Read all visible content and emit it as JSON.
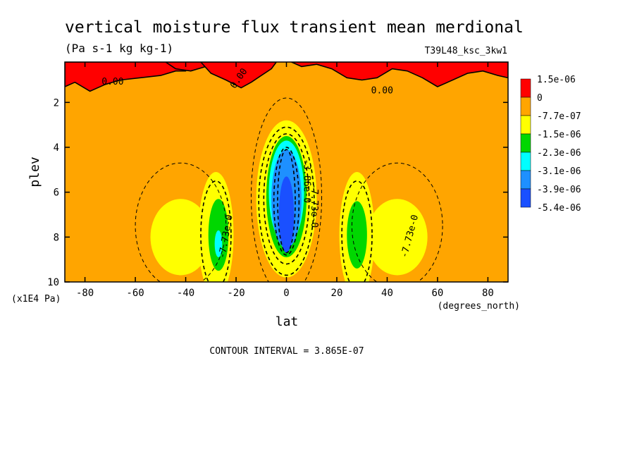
{
  "chart_data": {
    "type": "heatmap",
    "title": "vertical moisture flux transient mean merdional",
    "units": "(Pa s-1 kg kg-1)",
    "run_label": "T39L48_ksc_3kw1",
    "xlabel": "lat",
    "x_units": "(degrees_north)",
    "ylabel": "plev",
    "y_units": "(x1E4 Pa)",
    "xlim": [
      -88,
      88
    ],
    "ylim": [
      10,
      0.2
    ],
    "x_ticks": [
      -80,
      -60,
      -40,
      -20,
      0,
      20,
      40,
      60,
      80
    ],
    "x_tick_labels": [
      "-80",
      "-60",
      "-40",
      "-20",
      "0",
      "20",
      "40",
      "60",
      "80"
    ],
    "y_ticks": [
      2,
      4,
      6,
      8,
      10
    ],
    "y_tick_labels": [
      "2",
      "4",
      "6",
      "8",
      "10"
    ],
    "legend": {
      "placement": "right",
      "colors": [
        "#ff0000",
        "#ffa500",
        "#ffff00",
        "#00d700",
        "#00ffff",
        "#1e90ff",
        "#1a50ff"
      ],
      "labels": [
        "1.5e-06",
        "0",
        "-7.7e-07",
        "-1.5e-06",
        "-2.3e-06",
        "-3.1e-06",
        "-3.9e-06",
        "-5.4e-06"
      ]
    },
    "contour_interval_text": "CONTOUR INTERVAL = 3.865E-07",
    "contour_labels": [
      {
        "text": "0.00",
        "lat": -69,
        "plev": 1.2,
        "rotate": 0
      },
      {
        "text": "0.00",
        "lat": -18,
        "plev": 1.0,
        "rotate": -55
      },
      {
        "text": "0.00",
        "lat": 38,
        "plev": 1.6,
        "rotate": 0
      },
      {
        "text": "-7.73e-0",
        "lat": -23,
        "plev": 8.0,
        "rotate": -80
      },
      {
        "text": "-7.73e-0",
        "lat": 10,
        "plev": 6.6,
        "rotate": 90
      },
      {
        "text": "-3.86e-0",
        "lat": 7,
        "plev": 5.5,
        "rotate": 90
      },
      {
        "text": "-7.73e-0",
        "lat": 50,
        "plev": 8.0,
        "rotate": -75
      }
    ],
    "filled_regions": [
      {
        "level": 1,
        "kind": "band",
        "lat0": -88,
        "lat1": 88,
        "plev0": 0.2,
        "plev1": 10
      },
      {
        "level": 0,
        "kind": "top",
        "pts": [
          [
            -88,
            1.3
          ],
          [
            -84,
            1.1
          ],
          [
            -78,
            1.5
          ],
          [
            -72,
            1.2
          ],
          [
            -66,
            1.0
          ],
          [
            -58,
            0.9
          ],
          [
            -50,
            0.8
          ],
          [
            -44,
            0.6
          ],
          [
            -40,
            0.6
          ],
          [
            -40,
            0.2
          ],
          [
            -88,
            0.2
          ]
        ]
      },
      {
        "level": 0,
        "kind": "top",
        "pts": [
          [
            -48,
            0.2
          ],
          [
            -44,
            0.5
          ],
          [
            -38,
            0.6
          ],
          [
            -32,
            0.4
          ],
          [
            -26,
            0.2
          ]
        ]
      },
      {
        "level": 0,
        "kind": "top",
        "pts": [
          [
            -34,
            0.2
          ],
          [
            -30,
            0.7
          ],
          [
            -24,
            1.0
          ],
          [
            -18,
            1.35
          ],
          [
            -14,
            1.1
          ],
          [
            -10,
            0.8
          ],
          [
            -6,
            0.5
          ],
          [
            -4,
            0.2
          ]
        ]
      },
      {
        "level": 0,
        "kind": "top",
        "pts": [
          [
            2,
            0.2
          ],
          [
            6,
            0.4
          ],
          [
            12,
            0.3
          ],
          [
            18,
            0.5
          ],
          [
            24,
            0.9
          ],
          [
            30,
            1.0
          ],
          [
            36,
            0.9
          ],
          [
            42,
            0.5
          ],
          [
            48,
            0.6
          ],
          [
            54,
            0.9
          ],
          [
            60,
            1.3
          ],
          [
            66,
            1.0
          ],
          [
            72,
            0.7
          ],
          [
            78,
            0.6
          ],
          [
            84,
            0.8
          ],
          [
            88,
            0.9
          ],
          [
            88,
            0.2
          ]
        ]
      },
      {
        "level": 2,
        "kind": "blob",
        "cx": -42,
        "cy": 8.0,
        "rx": 12,
        "ry": 1.7
      },
      {
        "level": 2,
        "kind": "blob",
        "cx": -28,
        "cy": 7.9,
        "rx": 7,
        "ry": 2.8
      },
      {
        "level": 2,
        "kind": "blob",
        "cx": 0,
        "cy": 6.3,
        "rx": 12,
        "ry": 3.5
      },
      {
        "level": 2,
        "kind": "blob",
        "cx": 28,
        "cy": 7.9,
        "rx": 7,
        "ry": 2.8
      },
      {
        "level": 2,
        "kind": "blob",
        "cx": 44,
        "cy": 8.0,
        "rx": 12,
        "ry": 1.7
      },
      {
        "level": 3,
        "kind": "blob",
        "cx": -27,
        "cy": 7.9,
        "rx": 4,
        "ry": 1.6
      },
      {
        "level": 3,
        "kind": "blob",
        "cx": 28,
        "cy": 7.9,
        "rx": 4,
        "ry": 1.5
      },
      {
        "level": 3,
        "kind": "blob",
        "cx": 0,
        "cy": 6.2,
        "rx": 8,
        "ry": 2.7
      },
      {
        "level": 4,
        "kind": "blob",
        "cx": -27,
        "cy": 8.3,
        "rx": 1.5,
        "ry": 0.6
      },
      {
        "level": 4,
        "kind": "blob",
        "cx": 0,
        "cy": 6.0,
        "rx": 7,
        "ry": 2.3
      },
      {
        "level": 5,
        "kind": "blob",
        "cx": 0,
        "cy": 6.3,
        "rx": 6,
        "ry": 2.2
      },
      {
        "level": 6,
        "kind": "blob",
        "cx": 0,
        "cy": 7.0,
        "rx": 3,
        "ry": 1.7
      }
    ],
    "dashed_contours": [
      {
        "cx": 0,
        "cy": 6.2,
        "rx": 14,
        "ry": 4.4
      },
      {
        "cx": -42,
        "cy": 7.5,
        "rx": 18,
        "ry": 2.8
      },
      {
        "cx": 44,
        "cy": 7.5,
        "rx": 18,
        "ry": 2.8
      },
      {
        "cx": 0,
        "cy": 6.4,
        "rx": 11,
        "ry": 3.3
      },
      {
        "cx": -28,
        "cy": 7.9,
        "rx": 6,
        "ry": 2.4
      },
      {
        "cx": 28,
        "cy": 7.9,
        "rx": 6,
        "ry": 2.4
      },
      {
        "cx": 0,
        "cy": 6.3,
        "rx": 9,
        "ry": 2.9
      },
      {
        "cx": 0,
        "cy": 6.4,
        "rx": 5,
        "ry": 2.4
      },
      {
        "cx": 0,
        "cy": 6.4,
        "rx": 3.5,
        "ry": 2.3
      }
    ]
  }
}
